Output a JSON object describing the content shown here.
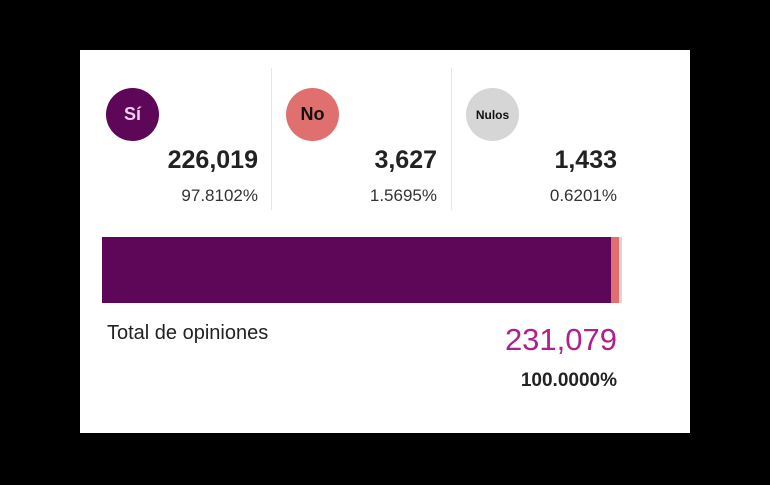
{
  "options": [
    {
      "label": "Sí",
      "votes": "226,019",
      "percent": "97.8102%",
      "color": "#5e0658",
      "text_color": "#f0d0ee",
      "share": 97.8102
    },
    {
      "label": "No",
      "votes": "3,627",
      "percent": "1.5695%",
      "color": "#e07070",
      "text_color": "#111111",
      "share": 1.5695
    },
    {
      "label": "Nulos",
      "votes": "1,433",
      "percent": "0.6201%",
      "color": "#d6d6d6",
      "text_color": "#111111",
      "share": 0.6201
    }
  ],
  "total": {
    "label": "Total de opiniones",
    "votes": "231,079",
    "percent": "100.0000%"
  }
}
